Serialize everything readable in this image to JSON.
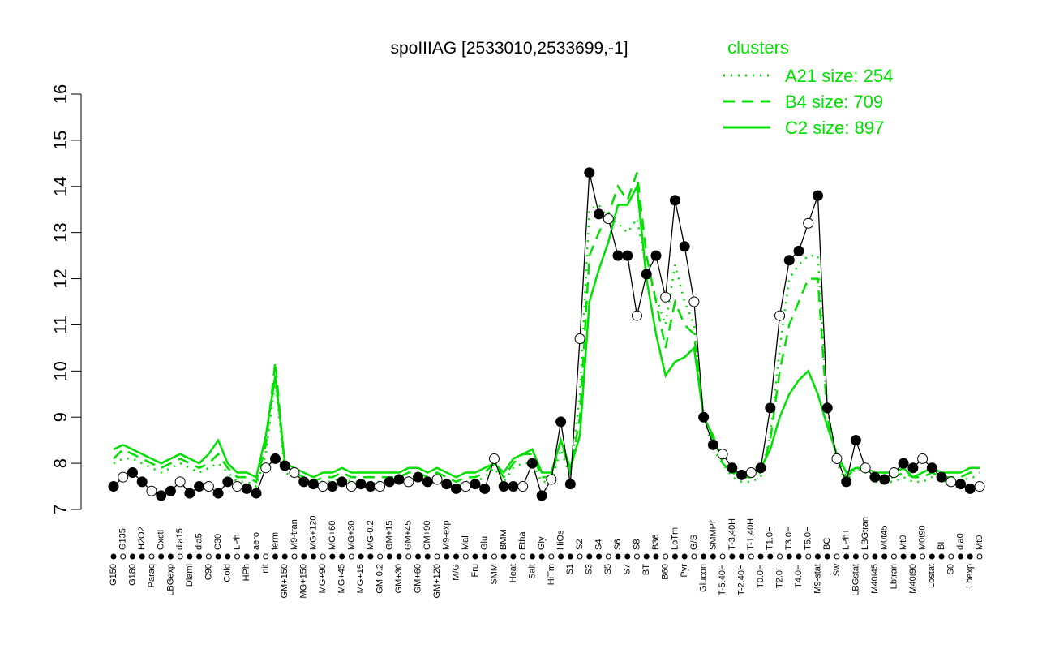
{
  "chart_data": {
    "type": "line",
    "title": "spoIIIAG [2533010,2533699,-1]",
    "legend_title": "clusters",
    "legend_position": "upper right",
    "categories": [
      "G150",
      "G135",
      "G180",
      "H2O2",
      "Paraq",
      "Oxctl",
      "LBGexp",
      "dia15",
      "Diami",
      "dia5",
      "C90",
      "C30",
      "Cold",
      "LPh",
      "HPh",
      "aero",
      "nit",
      "ferm",
      "GM+150",
      "M9-tran",
      "MG+150",
      "MG+120",
      "MG+90",
      "MG+60",
      "MG+45",
      "MG+30",
      "MG+15",
      "MG-0.2",
      "GM-0.2",
      "GM+15",
      "GM+30",
      "GM+45",
      "GM+60",
      "GM+90",
      "GM+120",
      "M9-exp",
      "M/G",
      "Mal",
      "Fru",
      "Glu",
      "SMM",
      "BMM",
      "Heat",
      "Etha",
      "Salt",
      "Gly",
      "HiTm",
      "HiOs",
      "S1",
      "S2",
      "S3",
      "S4",
      "S5",
      "S6",
      "S7",
      "S8",
      "BT",
      "B36",
      "B60",
      "LoTm",
      "Pyr",
      "G/S",
      "Glucon",
      "SMMPr",
      "T-5.40H",
      "T-3.40H",
      "T-2.40H",
      "T-1.40H",
      "T0.0H",
      "T1.0H",
      "T2.0H",
      "T3.0H",
      "T4.0H",
      "T5.0H",
      "M9-stat",
      "BC",
      "Sw",
      "LPhT",
      "LBGstat",
      "LBGtran",
      "M40t45",
      "M0t45",
      "Lbtran",
      "Mt0",
      "M40t90",
      "M0t90",
      "Lbstat",
      "BI",
      "S0",
      "dia0",
      "Lbexp",
      "Mt0"
    ],
    "values": [
      7.5,
      7.7,
      7.8,
      7.6,
      7.4,
      7.3,
      7.4,
      7.6,
      7.35,
      7.5,
      7.5,
      7.35,
      7.6,
      7.5,
      7.45,
      7.35,
      7.9,
      8.1,
      7.95,
      7.8,
      7.6,
      7.55,
      7.5,
      7.5,
      7.6,
      7.5,
      7.55,
      7.5,
      7.5,
      7.6,
      7.65,
      7.6,
      7.7,
      7.6,
      7.65,
      7.55,
      7.45,
      7.5,
      7.55,
      7.45,
      8.1,
      7.5,
      7.5,
      7.5,
      8.0,
      7.3,
      7.65,
      8.9,
      7.55,
      10.7,
      14.3,
      13.4,
      13.3,
      12.5,
      12.5,
      11.2,
      12.1,
      12.5,
      11.6,
      13.7,
      12.7,
      11.5,
      9.0,
      8.4,
      8.2,
      7.9,
      7.75,
      7.8,
      7.9,
      9.2,
      11.2,
      12.4,
      12.6,
      13.2,
      13.8,
      9.2,
      8.1,
      7.6,
      8.5,
      7.9,
      7.7,
      7.65,
      7.8,
      8.0,
      7.9,
      8.1,
      7.9,
      7.7,
      7.6,
      7.55,
      7.45,
      7.5
    ],
    "color": "#000000",
    "series": [
      {
        "name": "A21 size: 254",
        "color": "#00e000",
        "style": "dotted",
        "values": [
          8.0,
          8.1,
          8.1,
          8.0,
          7.9,
          7.8,
          7.9,
          8.0,
          7.9,
          7.8,
          7.9,
          8.0,
          7.8,
          7.6,
          7.6,
          7.5,
          8.2,
          9.8,
          7.8,
          7.7,
          7.6,
          7.6,
          7.6,
          7.6,
          7.7,
          7.6,
          7.6,
          7.6,
          7.6,
          7.6,
          7.6,
          7.7,
          7.7,
          7.6,
          7.7,
          7.6,
          7.5,
          7.6,
          7.6,
          7.7,
          7.9,
          7.6,
          7.9,
          8.0,
          8.0,
          7.6,
          7.6,
          8.3,
          7.7,
          9.5,
          13.5,
          13.6,
          13.3,
          13.2,
          13.0,
          13.3,
          12.2,
          11.6,
          11.0,
          12.3,
          11.5,
          11.0,
          9.0,
          8.3,
          8.0,
          7.7,
          7.6,
          7.6,
          7.7,
          8.6,
          10.5,
          12.0,
          12.3,
          12.5,
          12.5,
          9.2,
          8.0,
          7.6,
          7.9,
          7.8,
          7.6,
          7.6,
          7.6,
          7.7,
          7.6,
          7.6,
          7.7,
          7.6,
          7.6,
          7.6,
          7.7,
          7.7
        ]
      },
      {
        "name": "B4 size: 709",
        "color": "#00e000",
        "style": "dashed",
        "values": [
          8.1,
          8.3,
          8.2,
          8.1,
          8.0,
          7.9,
          8.0,
          8.1,
          8.0,
          7.9,
          8.0,
          8.2,
          7.9,
          7.7,
          7.7,
          7.6,
          8.4,
          10.2,
          7.9,
          7.8,
          7.7,
          7.6,
          7.7,
          7.7,
          7.8,
          7.7,
          7.7,
          7.7,
          7.7,
          7.7,
          7.7,
          7.8,
          7.8,
          7.7,
          7.8,
          7.7,
          7.6,
          7.7,
          7.7,
          7.8,
          8.0,
          7.7,
          8.0,
          8.2,
          8.2,
          7.7,
          7.7,
          8.5,
          7.8,
          9.0,
          12.5,
          13.0,
          13.4,
          14.0,
          13.7,
          14.3,
          12.5,
          11.5,
          10.5,
          11.5,
          11.0,
          10.8,
          9.0,
          8.5,
          8.1,
          7.8,
          7.7,
          7.7,
          7.8,
          8.5,
          10.0,
          11.0,
          11.5,
          12.0,
          12.0,
          9.0,
          8.1,
          7.7,
          7.9,
          7.9,
          7.7,
          7.7,
          7.7,
          7.8,
          7.7,
          7.7,
          7.8,
          7.7,
          7.7,
          7.7,
          7.8,
          7.8
        ]
      },
      {
        "name": "C2 size: 897",
        "color": "#00e000",
        "style": "solid",
        "values": [
          8.3,
          8.4,
          8.3,
          8.2,
          8.1,
          8.0,
          8.1,
          8.2,
          8.1,
          8.0,
          8.2,
          8.5,
          8.0,
          7.8,
          7.8,
          7.7,
          8.6,
          9.9,
          8.0,
          7.9,
          7.8,
          7.7,
          7.8,
          7.8,
          7.9,
          7.8,
          7.8,
          7.8,
          7.8,
          7.8,
          7.8,
          7.9,
          7.9,
          7.8,
          7.9,
          7.8,
          7.7,
          7.8,
          7.8,
          7.9,
          8.0,
          7.8,
          8.1,
          8.2,
          8.3,
          7.8,
          7.8,
          8.5,
          7.9,
          8.6,
          11.5,
          12.2,
          12.8,
          13.6,
          13.6,
          14.0,
          12.0,
          10.8,
          9.9,
          10.2,
          10.3,
          10.5,
          9.0,
          8.6,
          8.0,
          7.8,
          7.8,
          7.8,
          7.9,
          8.3,
          9.0,
          9.5,
          9.8,
          10.0,
          9.5,
          8.8,
          8.2,
          7.8,
          7.9,
          7.9,
          7.8,
          7.8,
          7.8,
          7.9,
          7.7,
          7.8,
          7.9,
          7.8,
          7.8,
          7.8,
          7.9,
          7.9
        ]
      }
    ],
    "ylim": [
      7,
      16
    ],
    "yticks": [
      7,
      8,
      9,
      10,
      11,
      12,
      13,
      14,
      15,
      16
    ]
  }
}
